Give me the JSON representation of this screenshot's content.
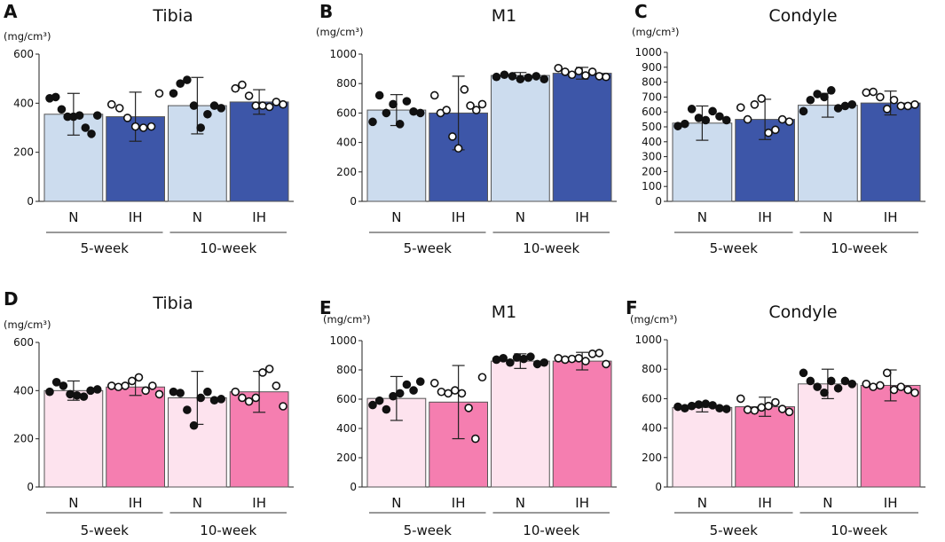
{
  "unit_label": "(mg/cm³)",
  "colors": {
    "blue_light": "#ccdcee",
    "blue_dark": "#3d56a8",
    "pink_light": "#fde3ee",
    "pink_dark": "#f57eb0"
  },
  "chart_data": [
    {
      "type": "bar",
      "letter": "A",
      "title": "Tibia",
      "ylabel": "(mg/cm³)",
      "ylim": [
        0,
        600
      ],
      "yticks": [
        0,
        200,
        400,
        600
      ],
      "categories": [
        "N",
        "IH",
        "N",
        "IH"
      ],
      "groups": [
        "5-week",
        "10-week"
      ],
      "colors": [
        "#ccdcee",
        "#3d56a8",
        "#ccdcee",
        "#3d56a8"
      ],
      "series": [
        {
          "name": "5-week N",
          "mean": 355,
          "sd": 85,
          "points": [
            420,
            425,
            375,
            345,
            345,
            350,
            300,
            275,
            350
          ]
        },
        {
          "name": "5-week IH",
          "mean": 345,
          "sd": 100,
          "points": [
            395,
            380,
            340,
            305,
            300,
            305,
            440
          ]
        },
        {
          "name": "10-week N",
          "mean": 390,
          "sd": 115,
          "points": [
            440,
            480,
            495,
            390,
            300,
            355,
            390,
            380
          ]
        },
        {
          "name": "10-week IH",
          "mean": 405,
          "sd": 50,
          "points": [
            460,
            475,
            430,
            390,
            390,
            385,
            405,
            395
          ]
        }
      ]
    },
    {
      "type": "bar",
      "letter": "B",
      "title": "M1",
      "ylabel": "(mg/cm³)",
      "ylim": [
        0,
        1000
      ],
      "yticks": [
        0,
        200,
        400,
        600,
        800,
        1000
      ],
      "categories": [
        "N",
        "IH",
        "N",
        "IH"
      ],
      "groups": [
        "5-week",
        "10-week"
      ],
      "colors": [
        "#ccdcee",
        "#3d56a8",
        "#ccdcee",
        "#3d56a8"
      ],
      "series": [
        {
          "name": "5-week N",
          "mean": 620,
          "sd": 105,
          "points": [
            540,
            720,
            600,
            660,
            525,
            680,
            610,
            600
          ]
        },
        {
          "name": "5-week IH",
          "mean": 600,
          "sd": 250,
          "points": [
            720,
            600,
            620,
            440,
            360,
            760,
            650,
            620,
            660
          ]
        },
        {
          "name": "10-week N",
          "mean": 855,
          "sd": 20,
          "points": [
            845,
            860,
            850,
            830,
            840,
            850,
            830
          ]
        },
        {
          "name": "10-week IH",
          "mean": 870,
          "sd": 40,
          "points": [
            905,
            880,
            860,
            885,
            855,
            880,
            850,
            845
          ]
        }
      ]
    },
    {
      "type": "bar",
      "letter": "C",
      "title": "Condyle",
      "ylabel": "(mg/cm³)",
      "ylim": [
        0,
        1000
      ],
      "yticks": [
        0,
        100,
        200,
        300,
        400,
        500,
        600,
        700,
        800,
        900,
        1000
      ],
      "categories": [
        "N",
        "IH",
        "N",
        "IH"
      ],
      "groups": [
        "5-week",
        "10-week"
      ],
      "colors": [
        "#ccdcee",
        "#3d56a8",
        "#ccdcee",
        "#3d56a8"
      ],
      "series": [
        {
          "name": "5-week N",
          "mean": 525,
          "sd": 115,
          "points": [
            505,
            520,
            620,
            560,
            545,
            605,
            570,
            545
          ]
        },
        {
          "name": "5-week IH",
          "mean": 550,
          "sd": 135,
          "points": [
            630,
            550,
            650,
            690,
            460,
            480,
            550,
            535
          ]
        },
        {
          "name": "10-week N",
          "mean": 645,
          "sd": 80,
          "points": [
            605,
            680,
            720,
            700,
            745,
            625,
            640,
            650
          ]
        },
        {
          "name": "10-week IH",
          "mean": 660,
          "sd": 80,
          "points": [
            730,
            735,
            700,
            620,
            680,
            640,
            640,
            650
          ]
        }
      ]
    },
    {
      "type": "bar",
      "letter": "D",
      "title": "Tibia",
      "ylabel": "(mg/cm³)",
      "ylim": [
        0,
        600
      ],
      "yticks": [
        0,
        200,
        400,
        600
      ],
      "categories": [
        "N",
        "IH",
        "N",
        "IH"
      ],
      "groups": [
        "5-week",
        "10-week"
      ],
      "colors": [
        "#fde3ee",
        "#f57eb0",
        "#fde3ee",
        "#f57eb0"
      ],
      "series": [
        {
          "name": "5-week N",
          "mean": 400,
          "sd": 40,
          "points": [
            395,
            435,
            420,
            385,
            380,
            375,
            400,
            405
          ]
        },
        {
          "name": "5-week IH",
          "mean": 415,
          "sd": 35,
          "points": [
            420,
            415,
            420,
            440,
            455,
            400,
            420,
            385
          ]
        },
        {
          "name": "10-week N",
          "mean": 370,
          "sd": 110,
          "points": [
            395,
            390,
            320,
            255,
            370,
            395,
            360,
            365
          ]
        },
        {
          "name": "10-week IH",
          "mean": 395,
          "sd": 85,
          "points": [
            395,
            370,
            355,
            370,
            475,
            490,
            420,
            335
          ]
        }
      ]
    },
    {
      "type": "bar",
      "letter": "E",
      "title": "M1",
      "ylabel": "(mg/cm³)",
      "ylim": [
        0,
        1000
      ],
      "yticks": [
        0,
        200,
        400,
        600,
        800,
        1000
      ],
      "categories": [
        "N",
        "IH",
        "N",
        "IH"
      ],
      "groups": [
        "5-week",
        "10-week"
      ],
      "colors": [
        "#fde3ee",
        "#f57eb0",
        "#fde3ee",
        "#f57eb0"
      ],
      "series": [
        {
          "name": "5-week N",
          "mean": 605,
          "sd": 150,
          "points": [
            560,
            590,
            530,
            620,
            640,
            700,
            660,
            720
          ]
        },
        {
          "name": "5-week IH",
          "mean": 580,
          "sd": 250,
          "points": [
            710,
            650,
            640,
            660,
            640,
            540,
            330,
            750
          ]
        },
        {
          "name": "10-week N",
          "mean": 860,
          "sd": 50,
          "points": [
            870,
            880,
            850,
            885,
            875,
            890,
            840,
            850
          ]
        },
        {
          "name": "10-week IH",
          "mean": 860,
          "sd": 60,
          "points": [
            880,
            870,
            875,
            880,
            860,
            910,
            915,
            840
          ]
        }
      ]
    },
    {
      "type": "bar",
      "letter": "F",
      "title": "Condyle",
      "ylabel": "(mg/cm³)",
      "ylim": [
        0,
        1000
      ],
      "yticks": [
        0,
        200,
        400,
        600,
        800,
        1000
      ],
      "categories": [
        "N",
        "IH",
        "N",
        "IH"
      ],
      "groups": [
        "5-week",
        "10-week"
      ],
      "colors": [
        "#fde3ee",
        "#f57eb0",
        "#fde3ee",
        "#f57eb0"
      ],
      "series": [
        {
          "name": "5-week N",
          "mean": 540,
          "sd": 30,
          "points": [
            545,
            535,
            550,
            560,
            565,
            555,
            535,
            530
          ]
        },
        {
          "name": "5-week IH",
          "mean": 545,
          "sd": 65,
          "points": [
            600,
            525,
            520,
            540,
            550,
            575,
            530,
            510
          ]
        },
        {
          "name": "10-week N",
          "mean": 700,
          "sd": 100,
          "points": [
            775,
            720,
            680,
            640,
            720,
            670,
            720,
            700
          ]
        },
        {
          "name": "10-week IH",
          "mean": 690,
          "sd": 105,
          "points": [
            700,
            680,
            690,
            775,
            660,
            680,
            660,
            640
          ]
        }
      ]
    }
  ]
}
